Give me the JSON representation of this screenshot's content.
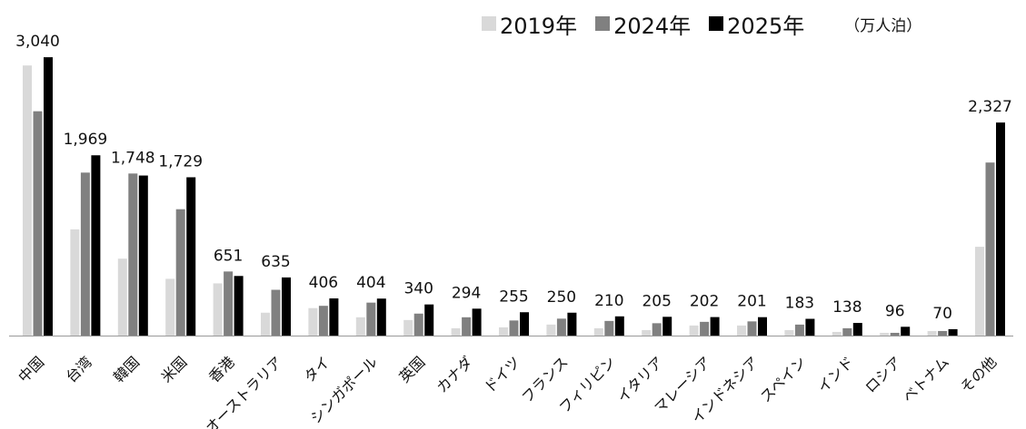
{
  "chart_data": {
    "type": "bar",
    "title": "",
    "unit_label": "（万人泊）",
    "categories": [
      "中国",
      "台湾",
      "韓国",
      "米国",
      "香港",
      "オーストラリア",
      "タイ",
      "シンガポール",
      "英国",
      "カナダ",
      "ドイツ",
      "フランス",
      "フィリピン",
      "イタリア",
      "マレーシア",
      "インドネシア",
      "スペイン",
      "インド",
      "ロシア",
      "ベトナム",
      "その他"
    ],
    "series": [
      {
        "name": "2019年",
        "color": "#d9d9d9",
        "values": [
          2950,
          1160,
          840,
          620,
          570,
          250,
          300,
          200,
          170,
          80,
          90,
          120,
          80,
          60,
          110,
          110,
          60,
          40,
          30,
          50,
          970
        ]
      },
      {
        "name": "2024年",
        "color": "#808080",
        "values": [
          2450,
          1780,
          1770,
          1380,
          700,
          500,
          325,
          360,
          240,
          200,
          165,
          185,
          160,
          135,
          150,
          155,
          120,
          80,
          30,
          50,
          1890
        ]
      },
      {
        "name": "2025年",
        "color": "#000000",
        "values": [
          3040,
          1969,
          1748,
          1729,
          651,
          635,
          406,
          404,
          340,
          294,
          255,
          250,
          210,
          205,
          202,
          201,
          183,
          138,
          96,
          70,
          2327
        ]
      }
    ],
    "data_labels": [
      "3,040",
      "1,969",
      "1,748",
      "1,729",
      "651",
      "635",
      "406",
      "404",
      "340",
      "294",
      "255",
      "250",
      "210",
      "205",
      "202",
      "201",
      "183",
      "138",
      "96",
      "70",
      "2,327"
    ],
    "ylim": [
      0,
      3150
    ],
    "grid": false,
    "legend_position": "top-right"
  }
}
